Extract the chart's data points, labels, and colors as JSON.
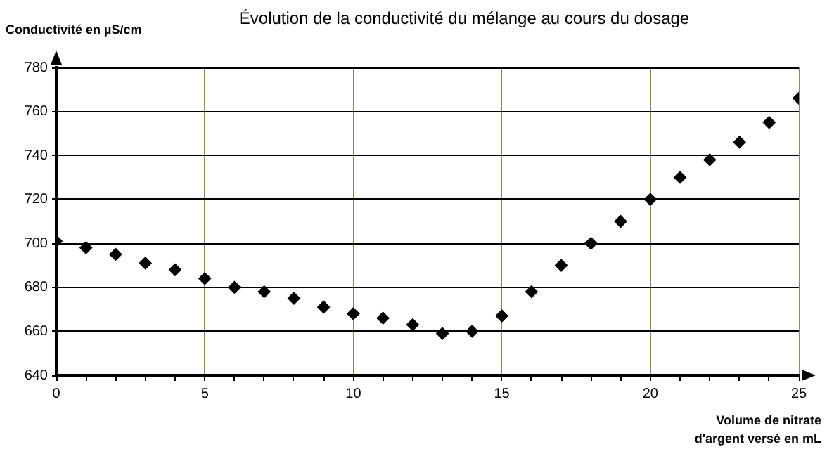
{
  "chart_data": {
    "type": "scatter",
    "title": "Évolution de la conductivité du mélange au cours du dosage",
    "xlabel": "Volume de nitrate d'argent versé en mL",
    "ylabel": "Conductivité en µS/cm",
    "x": [
      0,
      1,
      2,
      3,
      4,
      5,
      6,
      7,
      8,
      9,
      10,
      11,
      12,
      13,
      14,
      15,
      16,
      17,
      18,
      19,
      20,
      21,
      22,
      23,
      24,
      25
    ],
    "series": [
      {
        "color": "#000000",
        "values": [
          701,
          698,
          695,
          691,
          688,
          684,
          680,
          678,
          675,
          671,
          668,
          666,
          663,
          659,
          660,
          667,
          678,
          690,
          700,
          710,
          720,
          730,
          738,
          746,
          755,
          766
        ]
      }
    ],
    "xlim": [
      0,
      25
    ],
    "xticks": [
      0,
      {
        "value": 1,
        "label": null
      },
      {
        "value": 2,
        "label": null
      },
      {
        "value": 3,
        "label": null
      },
      {
        "value": 4,
        "label": null
      },
      5,
      {
        "value": 6,
        "label": null
      },
      {
        "value": 7,
        "label": null
      },
      {
        "value": 8,
        "label": null
      },
      {
        "value": 9,
        "label": null
      },
      10,
      {
        "value": 11,
        "label": null
      },
      {
        "value": 12,
        "label": null
      },
      {
        "value": 13,
        "label": null
      },
      {
        "value": 14,
        "label": null
      },
      15,
      {
        "value": 16,
        "label": null
      },
      {
        "value": 17,
        "label": null
      },
      {
        "value": 18,
        "label": null
      },
      {
        "value": 19,
        "label": null
      },
      20,
      {
        "value": 21,
        "label": null
      },
      {
        "value": 22,
        "label": null
      },
      {
        "value": 23,
        "label": null
      },
      {
        "value": 24,
        "label": null
      },
      25
    ],
    "ylim": [
      640,
      780
    ],
    "yticks": [
      640,
      660,
      680,
      700,
      720,
      740,
      760,
      780
    ],
    "grid": true,
    "legend": false,
    "marker": "diamond"
  }
}
